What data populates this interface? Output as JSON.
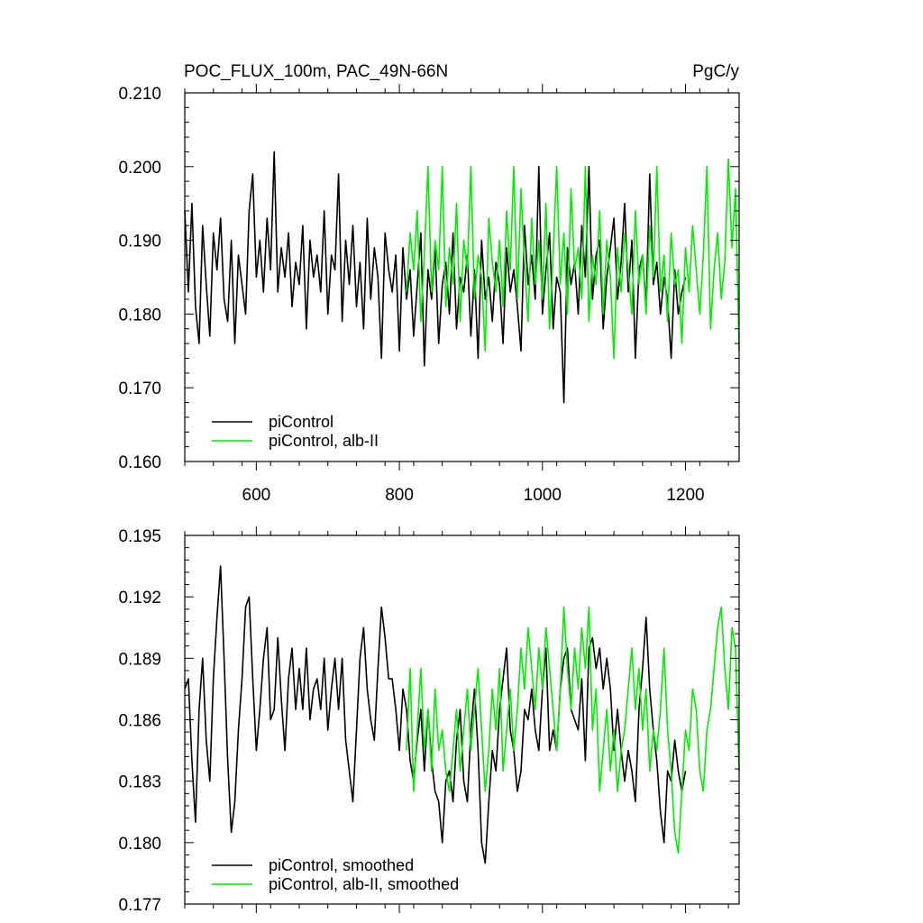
{
  "chart_data": [
    {
      "type": "line",
      "title": "POC_FLUX_100m, PAC_49N-66N",
      "units": "PgC/y",
      "xlim": [
        500,
        1275
      ],
      "ylim": [
        0.16,
        0.21
      ],
      "xticks": [
        600,
        800,
        1000,
        1200
      ],
      "xtick_labels": [
        "600",
        "800",
        "1000",
        "1200"
      ],
      "yticks": [
        0.16,
        0.17,
        0.18,
        0.19,
        0.2,
        0.21
      ],
      "ytick_labels": [
        "0.160",
        "0.170",
        "0.180",
        "0.190",
        "0.200",
        "0.210"
      ],
      "legend_position": "bottom-left",
      "series": [
        {
          "name": "piControl",
          "color": "#000000",
          "x": [
            500,
            505,
            510,
            515,
            520,
            525,
            530,
            535,
            540,
            545,
            550,
            555,
            560,
            565,
            570,
            575,
            580,
            585,
            590,
            595,
            600,
            605,
            610,
            615,
            620,
            625,
            630,
            635,
            640,
            645,
            650,
            655,
            660,
            665,
            670,
            675,
            680,
            685,
            690,
            695,
            700,
            705,
            710,
            715,
            720,
            725,
            730,
            735,
            740,
            745,
            750,
            755,
            760,
            765,
            770,
            775,
            780,
            785,
            790,
            795,
            800,
            805,
            810,
            815,
            820,
            825,
            830,
            835,
            840,
            845,
            850,
            855,
            860,
            865,
            870,
            875,
            880,
            885,
            890,
            895,
            900,
            905,
            910,
            915,
            920,
            925,
            930,
            935,
            940,
            945,
            950,
            955,
            960,
            965,
            970,
            975,
            980,
            985,
            990,
            995,
            1000,
            1005,
            1010,
            1015,
            1020,
            1025,
            1030,
            1035,
            1040,
            1045,
            1050,
            1055,
            1060,
            1065,
            1070,
            1075,
            1080,
            1085,
            1090,
            1095,
            1100,
            1105,
            1110,
            1115,
            1120,
            1125,
            1130,
            1135,
            1140,
            1145,
            1150,
            1155,
            1160,
            1165,
            1170,
            1175,
            1180,
            1185,
            1190,
            1195,
            1200
          ],
          "values": [
            0.194,
            0.183,
            0.195,
            0.181,
            0.176,
            0.192,
            0.184,
            0.177,
            0.191,
            0.186,
            0.193,
            0.182,
            0.179,
            0.19,
            0.176,
            0.188,
            0.184,
            0.18,
            0.194,
            0.199,
            0.185,
            0.19,
            0.183,
            0.193,
            0.186,
            0.202,
            0.183,
            0.189,
            0.185,
            0.191,
            0.181,
            0.187,
            0.184,
            0.192,
            0.178,
            0.19,
            0.185,
            0.188,
            0.183,
            0.194,
            0.18,
            0.188,
            0.186,
            0.199,
            0.179,
            0.19,
            0.184,
            0.192,
            0.181,
            0.187,
            0.178,
            0.193,
            0.182,
            0.189,
            0.185,
            0.174,
            0.191,
            0.186,
            0.183,
            0.188,
            0.175,
            0.189,
            0.182,
            0.186,
            0.177,
            0.184,
            0.191,
            0.173,
            0.186,
            0.182,
            0.189,
            0.176,
            0.184,
            0.187,
            0.18,
            0.191,
            0.178,
            0.185,
            0.183,
            0.188,
            0.177,
            0.186,
            0.174,
            0.19,
            0.182,
            0.185,
            0.179,
            0.187,
            0.184,
            0.176,
            0.189,
            0.183,
            0.186,
            0.181,
            0.175,
            0.192,
            0.184,
            0.188,
            0.182,
            0.2,
            0.18,
            0.186,
            0.191,
            0.178,
            0.185,
            0.183,
            0.168,
            0.189,
            0.184,
            0.187,
            0.18,
            0.192,
            0.185,
            0.2,
            0.182,
            0.188,
            0.19,
            0.178,
            0.185,
            0.189,
            0.193,
            0.182,
            0.187,
            0.195,
            0.183,
            0.19,
            0.174,
            0.186,
            0.188,
            0.181,
            0.199,
            0.184,
            0.187,
            0.18,
            0.185,
            0.182,
            0.174,
            0.186,
            0.18,
            0.183,
            0.185
          ]
        },
        {
          "name": "piControl, alb-II",
          "color": "#00ee00",
          "x": [
            810,
            815,
            820,
            825,
            830,
            835,
            840,
            845,
            850,
            855,
            860,
            865,
            870,
            875,
            880,
            885,
            890,
            895,
            900,
            905,
            910,
            915,
            920,
            925,
            930,
            935,
            940,
            945,
            950,
            955,
            960,
            965,
            970,
            975,
            980,
            985,
            990,
            995,
            1000,
            1005,
            1010,
            1015,
            1020,
            1025,
            1030,
            1035,
            1040,
            1045,
            1050,
            1055,
            1060,
            1065,
            1070,
            1075,
            1080,
            1085,
            1090,
            1095,
            1100,
            1105,
            1110,
            1115,
            1120,
            1125,
            1130,
            1135,
            1140,
            1145,
            1150,
            1155,
            1160,
            1165,
            1170,
            1175,
            1180,
            1185,
            1190,
            1195,
            1200,
            1205,
            1210,
            1215,
            1220,
            1225,
            1230,
            1235,
            1240,
            1245,
            1250,
            1255,
            1260,
            1265,
            1270,
            1275
          ],
          "values": [
            0.183,
            0.191,
            0.186,
            0.194,
            0.179,
            0.188,
            0.2,
            0.183,
            0.19,
            0.186,
            0.2,
            0.181,
            0.189,
            0.184,
            0.195,
            0.179,
            0.19,
            0.186,
            0.2,
            0.182,
            0.188,
            0.185,
            0.175,
            0.193,
            0.187,
            0.183,
            0.19,
            0.181,
            0.194,
            0.186,
            0.2,
            0.182,
            0.197,
            0.187,
            0.179,
            0.193,
            0.184,
            0.19,
            0.182,
            0.195,
            0.178,
            0.188,
            0.2,
            0.184,
            0.191,
            0.18,
            0.197,
            0.186,
            0.189,
            0.182,
            0.2,
            0.179,
            0.188,
            0.184,
            0.194,
            0.18,
            0.19,
            0.185,
            0.174,
            0.189,
            0.183,
            0.191,
            0.186,
            0.18,
            0.194,
            0.184,
            0.188,
            0.18,
            0.192,
            0.185,
            0.2,
            0.183,
            0.188,
            0.179,
            0.191,
            0.184,
            0.186,
            0.176,
            0.189,
            0.183,
            0.192,
            0.186,
            0.18,
            0.188,
            0.2,
            0.178,
            0.186,
            0.191,
            0.182,
            0.187,
            0.201,
            0.189,
            0.197,
            0.175
          ]
        }
      ]
    },
    {
      "type": "line",
      "title": "",
      "xlim": [
        500,
        1275
      ],
      "ylim": [
        0.177,
        0.195
      ],
      "xticks": [
        600,
        800,
        1000,
        1200
      ],
      "xtick_labels": [],
      "yticks": [
        0.177,
        0.18,
        0.183,
        0.186,
        0.189,
        0.192,
        0.195
      ],
      "ytick_labels": [
        "0.177",
        "0.180",
        "0.183",
        "0.186",
        "0.189",
        "0.192",
        "0.195"
      ],
      "legend_position": "bottom-left",
      "series": [
        {
          "name": "piControl, smoothed",
          "color": "#000000",
          "x": [
            500,
            505,
            510,
            515,
            520,
            525,
            530,
            535,
            540,
            545,
            550,
            555,
            560,
            565,
            570,
            575,
            580,
            585,
            590,
            595,
            600,
            605,
            610,
            615,
            620,
            625,
            630,
            635,
            640,
            645,
            650,
            655,
            660,
            665,
            670,
            675,
            680,
            685,
            690,
            695,
            700,
            705,
            710,
            715,
            720,
            725,
            730,
            735,
            740,
            745,
            750,
            755,
            760,
            765,
            770,
            775,
            780,
            785,
            790,
            795,
            800,
            805,
            810,
            815,
            820,
            825,
            830,
            835,
            840,
            845,
            850,
            855,
            860,
            865,
            870,
            875,
            880,
            885,
            890,
            895,
            900,
            905,
            910,
            915,
            920,
            925,
            930,
            935,
            940,
            945,
            950,
            955,
            960,
            965,
            970,
            975,
            980,
            985,
            990,
            995,
            1000,
            1005,
            1010,
            1015,
            1020,
            1025,
            1030,
            1035,
            1040,
            1045,
            1050,
            1055,
            1060,
            1065,
            1070,
            1075,
            1080,
            1085,
            1090,
            1095,
            1100,
            1105,
            1110,
            1115,
            1120,
            1125,
            1130,
            1135,
            1140,
            1145,
            1150,
            1155,
            1160,
            1165,
            1170,
            1175,
            1180,
            1185,
            1190,
            1195,
            1200
          ],
          "values": [
            0.1875,
            0.188,
            0.184,
            0.181,
            0.1865,
            0.189,
            0.185,
            0.183,
            0.188,
            0.191,
            0.1935,
            0.189,
            0.184,
            0.1805,
            0.182,
            0.1855,
            0.188,
            0.1915,
            0.192,
            0.188,
            0.1845,
            0.1865,
            0.189,
            0.1905,
            0.186,
            0.1865,
            0.19,
            0.187,
            0.1845,
            0.188,
            0.1895,
            0.1865,
            0.1885,
            0.1865,
            0.1895,
            0.186,
            0.1875,
            0.188,
            0.1865,
            0.189,
            0.1855,
            0.1875,
            0.189,
            0.1865,
            0.189,
            0.185,
            0.1835,
            0.182,
            0.1855,
            0.189,
            0.1905,
            0.1875,
            0.186,
            0.185,
            0.1885,
            0.1915,
            0.19,
            0.188,
            0.188,
            0.1865,
            0.1845,
            0.1875,
            0.1865,
            0.184,
            0.183,
            0.185,
            0.1865,
            0.1835,
            0.1865,
            0.184,
            0.1825,
            0.182,
            0.18,
            0.183,
            0.1835,
            0.182,
            0.185,
            0.1865,
            0.183,
            0.182,
            0.1855,
            0.1875,
            0.1845,
            0.18,
            0.179,
            0.182,
            0.1845,
            0.1835,
            0.1865,
            0.188,
            0.1895,
            0.1855,
            0.1845,
            0.1825,
            0.1835,
            0.1865,
            0.186,
            0.1875,
            0.1855,
            0.1845,
            0.1875,
            0.1895,
            0.1845,
            0.1855,
            0.1845,
            0.1875,
            0.189,
            0.1895,
            0.1865,
            0.186,
            0.1855,
            0.188,
            0.184,
            0.1895,
            0.19,
            0.1885,
            0.1895,
            0.1875,
            0.189,
            0.1875,
            0.1845,
            0.1865,
            0.1845,
            0.183,
            0.1845,
            0.1835,
            0.182,
            0.1865,
            0.1885,
            0.191,
            0.1875,
            0.1855,
            0.184,
            0.1815,
            0.18,
            0.1835,
            0.183,
            0.185,
            0.1835,
            0.1825,
            0.1835
          ]
        },
        {
          "name": "piControl, alb-II, smoothed",
          "color": "#00ee00",
          "x": [
            810,
            815,
            820,
            825,
            830,
            835,
            840,
            845,
            850,
            855,
            860,
            865,
            870,
            875,
            880,
            885,
            890,
            895,
            900,
            905,
            910,
            915,
            920,
            925,
            930,
            935,
            940,
            945,
            950,
            955,
            960,
            965,
            970,
            975,
            980,
            985,
            990,
            995,
            1000,
            1005,
            1010,
            1015,
            1020,
            1025,
            1030,
            1035,
            1040,
            1045,
            1050,
            1055,
            1060,
            1065,
            1070,
            1075,
            1080,
            1085,
            1090,
            1095,
            1100,
            1105,
            1110,
            1115,
            1120,
            1125,
            1130,
            1135,
            1140,
            1145,
            1150,
            1155,
            1160,
            1165,
            1170,
            1175,
            1180,
            1185,
            1190,
            1195,
            1200,
            1205,
            1210,
            1215,
            1220,
            1225,
            1230,
            1235,
            1240,
            1245,
            1250,
            1255,
            1260,
            1265,
            1270,
            1275
          ],
          "values": [
            0.1845,
            0.1885,
            0.1825,
            0.1855,
            0.1885,
            0.1845,
            0.1865,
            0.1835,
            0.1875,
            0.1845,
            0.1855,
            0.1835,
            0.1825,
            0.1845,
            0.1865,
            0.1835,
            0.1855,
            0.1875,
            0.1845,
            0.1865,
            0.1885,
            0.1855,
            0.1825,
            0.1845,
            0.1875,
            0.1855,
            0.1885,
            0.1835,
            0.1855,
            0.1875,
            0.1845,
            0.1865,
            0.1895,
            0.1875,
            0.1905,
            0.1885,
            0.1865,
            0.1895,
            0.1875,
            0.1905,
            0.1885,
            0.1865,
            0.1845,
            0.1875,
            0.1915,
            0.1885,
            0.1865,
            0.1895,
            0.1875,
            0.1905,
            0.1885,
            0.1915,
            0.1855,
            0.1875,
            0.1825,
            0.1845,
            0.1865,
            0.1835,
            0.1855,
            0.1825,
            0.1845,
            0.1855,
            0.1875,
            0.1895,
            0.1865,
            0.1885,
            0.1855,
            0.1875,
            0.1835,
            0.1855,
            0.1845,
            0.1865,
            0.1895,
            0.1855,
            0.1835,
            0.1805,
            0.1795,
            0.1825,
            0.1855,
            0.1845,
            0.1875,
            0.1865,
            0.1835,
            0.1825,
            0.1855,
            0.1865,
            0.1885,
            0.1905,
            0.1915,
            0.1885,
            0.1865,
            0.1905,
            0.1895,
            0.1835
          ]
        }
      ]
    }
  ]
}
